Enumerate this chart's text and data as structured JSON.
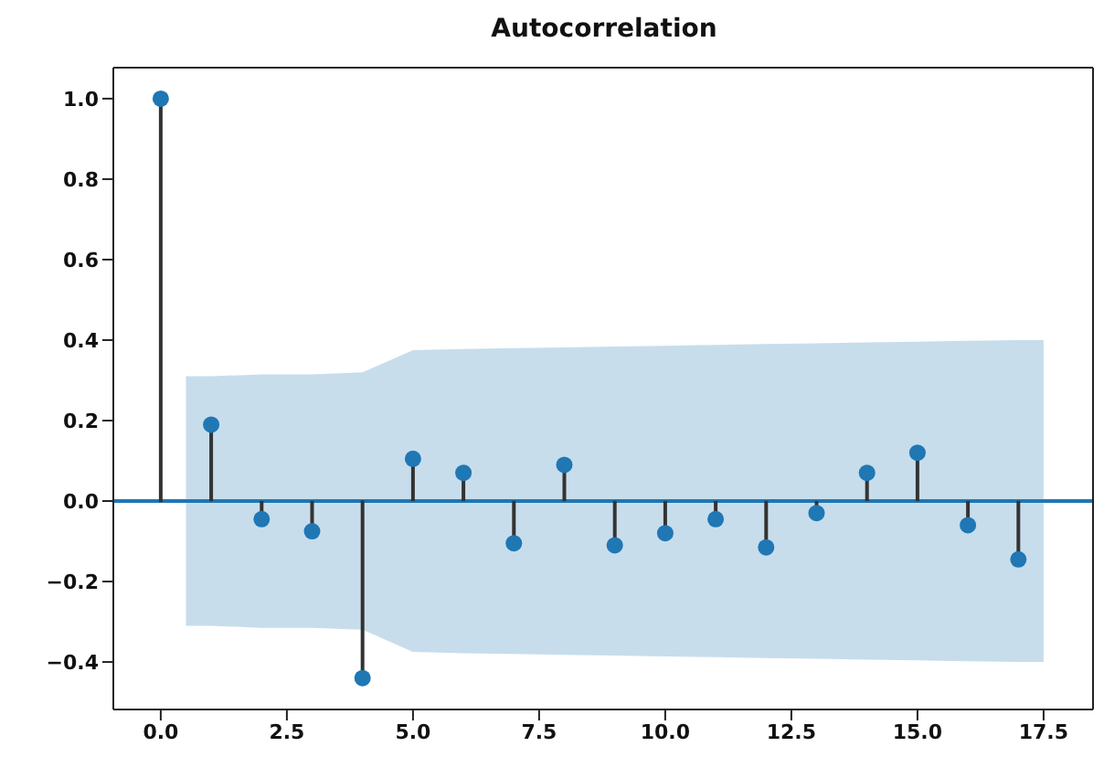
{
  "chart_data": {
    "type": "lollipop",
    "title": "Autocorrelation",
    "x": [
      0,
      1,
      2,
      3,
      4,
      5,
      6,
      7,
      8,
      9,
      10,
      11,
      12,
      13,
      14,
      15,
      16,
      17
    ],
    "series": [
      {
        "color": "#1f77b4",
        "marker": "circle",
        "values": [
          1.0,
          0.19,
          -0.045,
          -0.075,
          -0.44,
          0.105,
          0.07,
          -0.105,
          0.09,
          -0.11,
          -0.08,
          -0.045,
          -0.115,
          -0.03,
          0.07,
          0.12,
          -0.06,
          -0.145
        ]
      },
      {
        "type": "line",
        "color": "#1f77b4",
        "marker": "none",
        "x": [
          -0.94,
          0.5,
          1,
          2,
          3,
          4,
          5,
          6,
          7,
          8,
          9,
          10,
          11,
          12,
          13,
          14,
          15,
          16,
          17,
          17.5,
          18.48
        ],
        "values": [
          0,
          0,
          0,
          0,
          0,
          0,
          0,
          0,
          0,
          0,
          0,
          0,
          0,
          0,
          0,
          0,
          0,
          0,
          0,
          0,
          0
        ],
        "lower": [
          null,
          -0.31,
          -0.31,
          -0.315,
          -0.315,
          -0.32,
          -0.375,
          -0.378,
          -0.38,
          -0.382,
          -0.384,
          -0.386,
          -0.388,
          -0.39,
          -0.392,
          -0.394,
          -0.396,
          -0.398,
          -0.4,
          -0.4,
          null
        ],
        "upper": [
          null,
          0.31,
          0.31,
          0.315,
          0.315,
          0.32,
          0.375,
          0.378,
          0.38,
          0.382,
          0.384,
          0.386,
          0.388,
          0.39,
          0.392,
          0.394,
          0.396,
          0.398,
          0.4,
          0.4,
          null
        ]
      }
    ],
    "xlim": [
      -0.94,
      18.48
    ],
    "xticks": [
      {
        "value": 0,
        "label": "0.0"
      },
      {
        "value": 2.5,
        "label": "2.5"
      },
      {
        "value": 5,
        "label": "5.0"
      },
      {
        "value": 7.5,
        "label": "7.5"
      },
      {
        "value": 10,
        "label": "10.0"
      },
      {
        "value": 12.5,
        "label": "12.5"
      },
      {
        "value": 15,
        "label": "15.0"
      },
      {
        "value": 17.5,
        "label": "17.5"
      }
    ],
    "ylim": [
      -0.518,
      1.077
    ],
    "yticks": [
      {
        "value": -0.4,
        "label": "−0.4"
      },
      {
        "value": -0.2,
        "label": "−0.2"
      },
      {
        "value": 0,
        "label": "0.0"
      },
      {
        "value": 0.2,
        "label": "0.2"
      },
      {
        "value": 0.4,
        "label": "0.4"
      },
      {
        "value": 0.6,
        "label": "0.6"
      },
      {
        "value": 0.8,
        "label": "0.8"
      },
      {
        "value": 1.0,
        "label": "1.0"
      }
    ],
    "grid": false,
    "legend": false
  }
}
